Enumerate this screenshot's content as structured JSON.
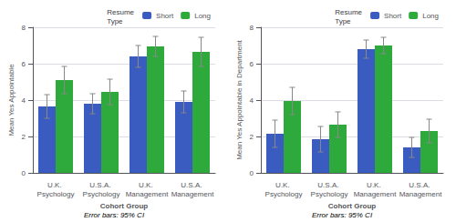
{
  "chart_data": [
    {
      "type": "bar",
      "categories": [
        "U.K. Psychology",
        "U.S.A. Psychology",
        "U.K. Management",
        "U.S.A. Management"
      ],
      "xlabel": "Cohort Group",
      "ylabel": "Mean Yes Appointable",
      "ylim": [
        0,
        8
      ],
      "yticks": [
        0,
        2,
        4,
        6,
        8
      ],
      "grid": true,
      "legend": "upper right",
      "legend_title": "Resume\nType",
      "annotations": [
        "Error bars: 95% CI"
      ],
      "series": [
        {
          "name": "Short",
          "color": "#3a5bbf",
          "values": [
            3.65,
            3.8,
            6.4,
            3.9
          ],
          "errors": [
            0.65,
            0.55,
            0.6,
            0.6
          ]
        },
        {
          "name": "Long",
          "color": "#2eaa3c",
          "values": [
            5.1,
            4.45,
            6.95,
            6.65
          ],
          "errors": [
            0.75,
            0.7,
            0.55,
            0.8
          ]
        }
      ]
    },
    {
      "type": "bar",
      "categories": [
        "U.K. Psychology",
        "U.S.A. Psychology",
        "U.K. Management",
        "U.S.A. Management"
      ],
      "xlabel": "Cohort Group",
      "ylabel": "Mean Yes Appointable in Department",
      "ylim": [
        0,
        8
      ],
      "yticks": [
        0,
        2,
        4,
        6,
        8
      ],
      "grid": true,
      "legend": "upper right",
      "legend_title": "Resume\nType",
      "annotations": [
        "Error bars: 95% CI"
      ],
      "series": [
        {
          "name": "Short",
          "color": "#3a5bbf",
          "values": [
            2.15,
            1.85,
            6.8,
            1.4
          ],
          "errors": [
            0.75,
            0.7,
            0.5,
            0.55
          ]
        },
        {
          "name": "Long",
          "color": "#2eaa3c",
          "values": [
            3.95,
            2.65,
            7.0,
            2.3
          ],
          "errors": [
            0.75,
            0.7,
            0.45,
            0.65
          ]
        }
      ]
    }
  ]
}
